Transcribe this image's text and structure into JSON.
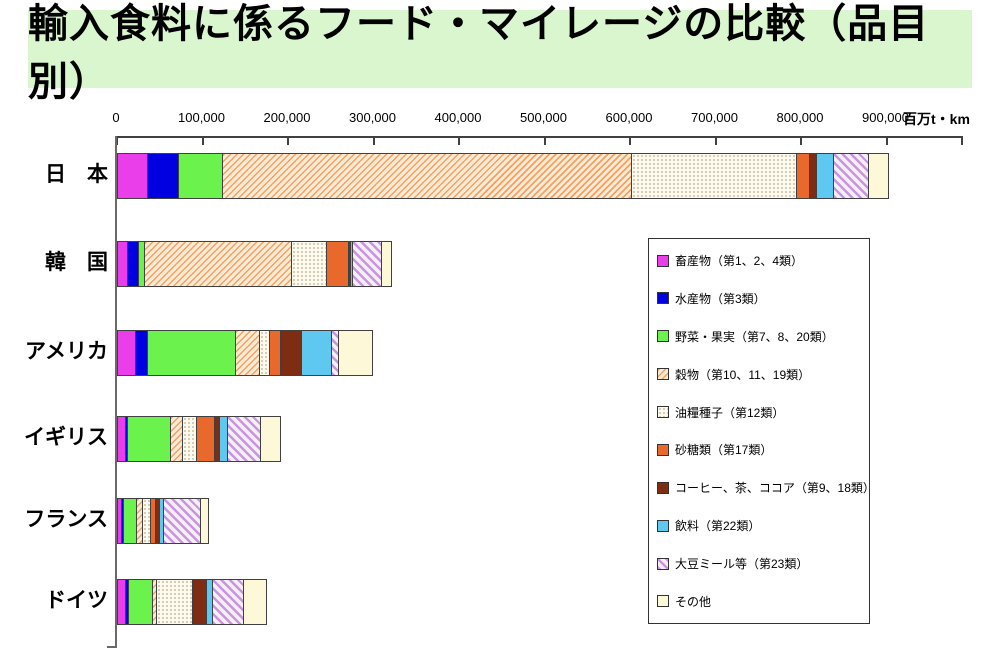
{
  "title": "輸入食料に係るフード・マイレージの比較（品目別）",
  "chart_data": {
    "type": "bar",
    "subtype": "horizontal-stacked",
    "title": "輸入食料に係るフード・マイレージの比較（品目別）",
    "unit": "百万t・km",
    "xlim": [
      0,
      900000
    ],
    "x_ticks": [
      0,
      100000,
      200000,
      300000,
      400000,
      500000,
      600000,
      700000,
      800000,
      900000
    ],
    "x_tick_labels": [
      "0",
      "100,000",
      "200,000",
      "300,000",
      "400,000",
      "500,000",
      "600,000",
      "700,000",
      "800,000",
      "900,000"
    ],
    "categories": [
      "日　本",
      "韓　国",
      "アメリカ",
      "イギリス",
      "フランス",
      "ドイツ"
    ],
    "legend_position": "right-middle",
    "grid": false,
    "series": [
      {
        "key": "livestock",
        "name": "畜産物（第1、2、4類）",
        "color": "#e93ee9",
        "pattern": "solid",
        "values": [
          35000,
          12000,
          21000,
          9000,
          4700,
          9700
        ]
      },
      {
        "key": "fishery",
        "name": "水産物（第3類）",
        "color": "#0000e1",
        "pattern": "solid",
        "values": [
          36000,
          12000,
          14500,
          2500,
          2300,
          2800
        ]
      },
      {
        "key": "vegetables-fruits",
        "name": "野菜・果実（第7、8、20類）",
        "color": "#6cf24d",
        "pattern": "solid",
        "values": [
          52000,
          8000,
          102000,
          50000,
          15000,
          28000
        ]
      },
      {
        "key": "grains",
        "name": "穀物（第10、11、19類）",
        "color": "#f0a266",
        "pattern": "diag-orange",
        "values": [
          478000,
          172000,
          29000,
          15000,
          6700,
          4700
        ]
      },
      {
        "key": "oilseeds",
        "name": "油糧種子（第12類）",
        "color": "#b3a489",
        "pattern": "dots",
        "values": [
          193000,
          41000,
          11500,
          15500,
          10000,
          43000
        ]
      },
      {
        "key": "sugar",
        "name": "砂糖類（第17類）",
        "color": "#e8692b",
        "pattern": "solid",
        "values": [
          15000,
          25000,
          12500,
          21500,
          5500,
          1000
        ]
      },
      {
        "key": "coffee-tea-cocoa",
        "name": "コーヒー、茶、ココア（第9、18類）",
        "color": "#7e2d12",
        "pattern": "solid",
        "values": [
          9000,
          2000,
          24500,
          6000,
          5000,
          14500
        ]
      },
      {
        "key": "beverages",
        "name": "飲料（第22類）",
        "color": "#5fc8f0",
        "pattern": "solid",
        "values": [
          19000,
          3000,
          35000,
          9500,
          5000,
          7000
        ]
      },
      {
        "key": "soybean-meal",
        "name": "大豆ミール等（第23類）",
        "color": "#c996de",
        "pattern": "diag-purple",
        "values": [
          42000,
          34000,
          8000,
          38000,
          43000,
          36000
        ]
      },
      {
        "key": "others",
        "name": "その他",
        "color": "#fcf8d8",
        "pattern": "solid",
        "values": [
          22000,
          10000,
          39000,
          22000,
          8000,
          26000
        ]
      }
    ]
  }
}
